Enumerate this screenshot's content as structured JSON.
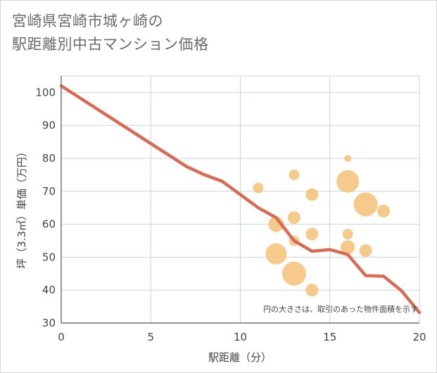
{
  "title_lines": [
    "宮崎県宮崎市城ヶ崎の",
    "駅距離別中古マンション価格"
  ],
  "chart_data": {
    "type": "scatter",
    "xlabel": "駅距離（分）",
    "ylabel": "坪（3.3㎡）単価（万円）",
    "xlim": [
      0,
      20
    ],
    "ylim": [
      30,
      105
    ],
    "xticks": [
      0,
      5,
      10,
      15,
      20
    ],
    "yticks": [
      30,
      40,
      50,
      60,
      70,
      80,
      90,
      100
    ],
    "note": "円の大きさは、取引のあった物件面積を示す",
    "bubble_color": "#f5c177",
    "line_color": "#d96b55",
    "bubbles": [
      {
        "x": 11,
        "y": 71,
        "size": 1.5
      },
      {
        "x": 12,
        "y": 60,
        "size": 2.2
      },
      {
        "x": 12,
        "y": 51,
        "size": 3.0
      },
      {
        "x": 13,
        "y": 75,
        "size": 1.5
      },
      {
        "x": 13,
        "y": 62,
        "size": 1.8
      },
      {
        "x": 13,
        "y": 55,
        "size": 1.5
      },
      {
        "x": 13,
        "y": 45,
        "size": 3.4
      },
      {
        "x": 14,
        "y": 69,
        "size": 1.8
      },
      {
        "x": 14,
        "y": 57,
        "size": 1.8
      },
      {
        "x": 14,
        "y": 40,
        "size": 1.8
      },
      {
        "x": 16,
        "y": 80,
        "size": 1.0
      },
      {
        "x": 16,
        "y": 73,
        "size": 3.2
      },
      {
        "x": 16,
        "y": 57,
        "size": 1.5
      },
      {
        "x": 16,
        "y": 53,
        "size": 2.0
      },
      {
        "x": 17,
        "y": 66,
        "size": 3.4
      },
      {
        "x": 17,
        "y": 52,
        "size": 1.8
      },
      {
        "x": 18,
        "y": 64,
        "size": 1.8
      }
    ],
    "trend_line": {
      "x": [
        0,
        1,
        2,
        3,
        4,
        5,
        6,
        7,
        8,
        9,
        10,
        11,
        12,
        13,
        14,
        15,
        16,
        17,
        18,
        19,
        20
      ],
      "y": [
        102,
        98.5,
        95,
        91.5,
        88,
        84.5,
        81,
        77.5,
        75,
        73,
        69,
        65,
        62,
        55,
        51.8,
        52.3,
        50.8,
        44.4,
        44.2,
        39.8,
        33.2
      ]
    }
  }
}
